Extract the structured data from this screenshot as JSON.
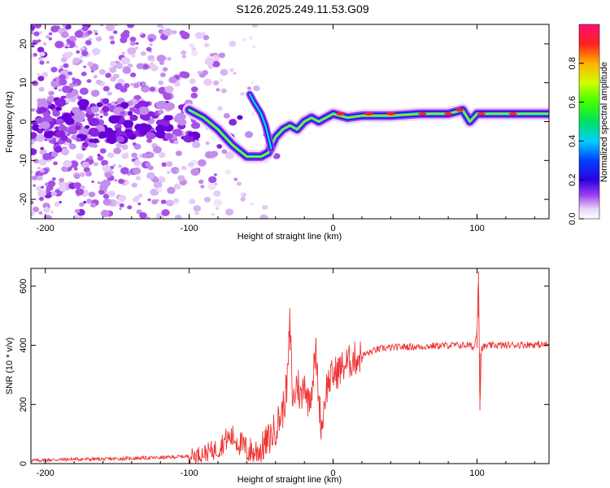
{
  "title": "S126.2025.249.11.53.G09",
  "chart_data": [
    {
      "type": "heatmap",
      "name": "spectrogram",
      "xlabel": "Height of straight line (km)",
      "ylabel": "Frequency (Hz)",
      "xlim": [
        -210,
        150
      ],
      "ylim": [
        -25,
        25
      ],
      "xticks": [
        -200,
        -100,
        0,
        100
      ],
      "yticks": [
        -20,
        -10,
        0,
        10,
        20
      ],
      "colorbar": {
        "label": "Normalized spectral amplitude",
        "range": [
          0,
          1
        ],
        "ticks": [
          "0.0",
          "0.2",
          "0.4",
          "0.6",
          "0.8"
        ]
      },
      "ridge": {
        "x": [
          -100,
          -90,
          -80,
          -70,
          -60,
          -50,
          -45,
          -40,
          -35,
          -30,
          -25,
          -20,
          -15,
          -10,
          -5,
          0,
          10,
          20,
          40,
          60,
          80,
          90,
          95,
          100,
          110,
          120,
          150
        ],
        "y": [
          3,
          1,
          -2,
          -6,
          -9,
          -9,
          -8,
          -4,
          -2,
          -1,
          -2,
          0,
          1,
          0,
          1,
          2,
          1,
          1.5,
          1.5,
          2,
          2,
          3,
          0,
          2,
          2,
          2,
          2
        ]
      },
      "upper_branch": {
        "x": [
          -58,
          -55,
          -50,
          -47,
          -45,
          -43
        ],
        "y": [
          7,
          5,
          2,
          -1,
          -4,
          -7
        ]
      }
    },
    {
      "type": "line",
      "name": "snr",
      "xlabel": "Height of straight line (km)",
      "ylabel": "SNR (10 * v/v)",
      "xlim": [
        -210,
        150
      ],
      "ylim": [
        0,
        660
      ],
      "xticks": [
        -200,
        -100,
        0,
        100
      ],
      "yticks": [
        0,
        200,
        400,
        600
      ],
      "color": "#ee3333",
      "x": [
        -210,
        -200,
        -180,
        -160,
        -140,
        -120,
        -100,
        -90,
        -80,
        -75,
        -70,
        -65,
        -60,
        -55,
        -50,
        -45,
        -40,
        -35,
        -32,
        -30,
        -28,
        -25,
        -22,
        -20,
        -18,
        -15,
        -12,
        -10,
        -8,
        -5,
        -3,
        0,
        5,
        10,
        15,
        20,
        25,
        30,
        35,
        40,
        50,
        60,
        70,
        80,
        90,
        95,
        98,
        100,
        101,
        102,
        103,
        105,
        110,
        120,
        130,
        140,
        150
      ],
      "y": [
        10,
        12,
        15,
        15,
        18,
        20,
        25,
        35,
        50,
        80,
        90,
        70,
        45,
        40,
        50,
        80,
        120,
        180,
        260,
        480,
        200,
        280,
        210,
        300,
        210,
        250,
        380,
        220,
        120,
        250,
        280,
        300,
        320,
        340,
        355,
        365,
        375,
        385,
        390,
        392,
        395,
        395,
        398,
        400,
        400,
        400,
        390,
        450,
        650,
        180,
        390,
        395,
        400,
        400,
        402,
        402,
        402
      ]
    }
  ]
}
